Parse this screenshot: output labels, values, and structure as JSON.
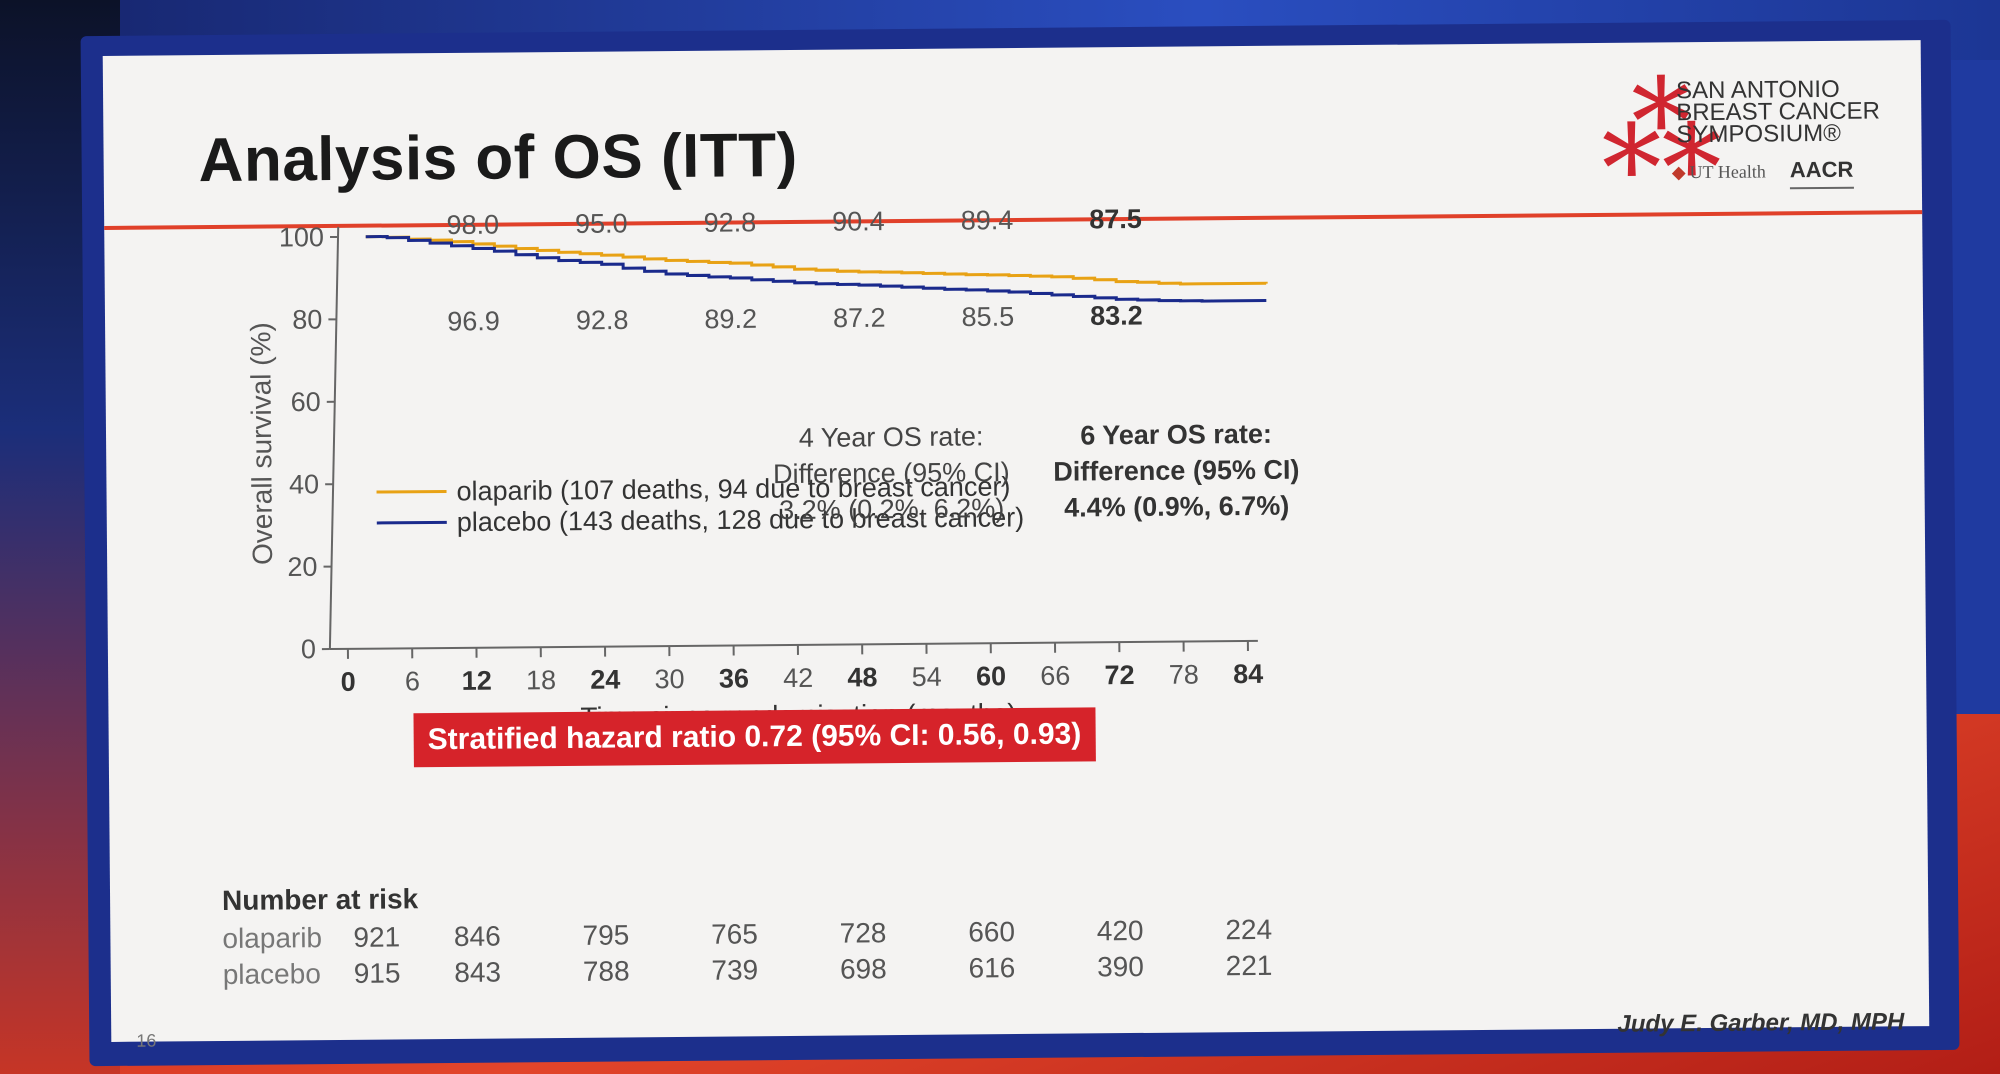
{
  "slide": {
    "title": "Analysis of OS (ITT)",
    "page_number": "16",
    "presenter": "Judy E. Garber, MD, MPH"
  },
  "logo": {
    "line1": "SAN ANTONIO",
    "line2": "BREAST CANCER",
    "line3": "SYMPOSIUM®",
    "partner1": "UT Health",
    "partner2": "AACR"
  },
  "colors": {
    "olaparib": "#e8a215",
    "placebo": "#1a2a8c",
    "hr_box": "#d6232a",
    "rule": "#e0402a"
  },
  "chart_data": {
    "type": "line",
    "xlabel": "Time since randomisation (months)",
    "ylabel": "Overall survival (%)",
    "xlim": [
      0,
      84
    ],
    "ylim": [
      0,
      100
    ],
    "x_ticks": [
      0,
      6,
      12,
      18,
      24,
      30,
      36,
      42,
      48,
      54,
      60,
      66,
      72,
      78,
      84
    ],
    "x_ticks_bold": [
      0,
      12,
      24,
      36,
      48,
      60,
      72,
      84
    ],
    "y_ticks": [
      0,
      20,
      40,
      60,
      80,
      100
    ],
    "series": [
      {
        "name": "olaparib (107 deaths, 94 due to breast cancer)",
        "color": "#e8a215",
        "x": [
          2,
          4,
          6,
          8,
          10,
          12,
          14,
          16,
          18,
          20,
          22,
          24,
          26,
          28,
          30,
          32,
          34,
          36,
          38,
          40,
          42,
          44,
          46,
          48,
          50,
          52,
          54,
          56,
          58,
          60,
          62,
          64,
          66,
          68,
          70,
          72,
          74,
          76,
          78,
          80,
          82,
          86
        ],
        "y": [
          100,
          99.8,
          99.3,
          99.0,
          98.6,
          98.0,
          97.4,
          96.8,
          96.3,
          95.8,
          95.4,
          95.0,
          94.5,
          94.0,
          93.6,
          93.3,
          93.0,
          92.8,
          92.3,
          91.8,
          91.2,
          90.9,
          90.6,
          90.4,
          90.3,
          90.1,
          89.9,
          89.7,
          89.5,
          89.4,
          89.2,
          89.0,
          88.8,
          88.4,
          88.0,
          87.5,
          87.3,
          87.0,
          86.8,
          86.8,
          86.8,
          86.7
        ]
      },
      {
        "name": "placebo (143 deaths, 128 due to breast cancer)",
        "color": "#1a2a8c",
        "x": [
          2,
          4,
          6,
          8,
          10,
          12,
          14,
          16,
          18,
          20,
          22,
          24,
          26,
          28,
          30,
          32,
          34,
          36,
          38,
          40,
          42,
          44,
          46,
          48,
          50,
          52,
          54,
          56,
          58,
          60,
          62,
          64,
          66,
          68,
          70,
          72,
          74,
          76,
          78,
          80,
          82,
          86
        ],
        "y": [
          100,
          99.7,
          99.0,
          98.3,
          97.6,
          96.9,
          96.2,
          95.3,
          94.5,
          93.8,
          93.3,
          92.8,
          91.8,
          91.0,
          90.3,
          89.9,
          89.5,
          89.2,
          88.7,
          88.3,
          87.9,
          87.6,
          87.4,
          87.2,
          86.9,
          86.6,
          86.3,
          86.0,
          85.8,
          85.5,
          85.2,
          84.8,
          84.4,
          84.0,
          83.6,
          83.2,
          83.0,
          82.8,
          82.7,
          82.6,
          82.6,
          82.6
        ]
      }
    ],
    "labels_above": [
      {
        "x": 12,
        "text": "98.0",
        "bold": false
      },
      {
        "x": 24,
        "text": "95.0",
        "bold": false
      },
      {
        "x": 36,
        "text": "92.8",
        "bold": false
      },
      {
        "x": 48,
        "text": "90.4",
        "bold": false
      },
      {
        "x": 60,
        "text": "89.4",
        "bold": false
      },
      {
        "x": 72,
        "text": "87.5",
        "bold": true
      }
    ],
    "labels_below": [
      {
        "x": 12,
        "text": "96.9",
        "bold": false
      },
      {
        "x": 24,
        "text": "92.8",
        "bold": false
      },
      {
        "x": 36,
        "text": "89.2",
        "bold": false
      },
      {
        "x": 48,
        "text": "87.2",
        "bold": false
      },
      {
        "x": 60,
        "text": "85.5",
        "bold": false
      },
      {
        "x": 72,
        "text": "83.2",
        "bold": true
      }
    ],
    "annotation_4yr": [
      "4 Year OS rate:",
      "Difference (95% CI)",
      "3.2% (0.2%, 6.2%)"
    ],
    "annotation_6yr": [
      "6 Year OS rate:",
      "Difference (95% CI)",
      "4.4% (0.9%, 6.7%)"
    ],
    "hazard_ratio": "Stratified hazard ratio 0.72 (95% CI: 0.56, 0.93)",
    "number_at_risk": {
      "title": "Number at risk",
      "arms": [
        {
          "name": "olaparib",
          "values": [
            "921",
            "846",
            "795",
            "765",
            "728",
            "660",
            "420",
            "224"
          ]
        },
        {
          "name": "placebo",
          "values": [
            "915",
            "843",
            "788",
            "739",
            "698",
            "616",
            "390",
            "221"
          ]
        }
      ],
      "at_months": [
        0,
        12,
        24,
        36,
        48,
        60,
        72,
        84
      ]
    }
  }
}
